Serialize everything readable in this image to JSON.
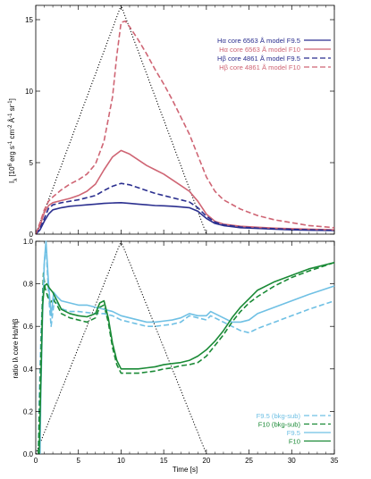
{
  "chart_data": [
    {
      "type": "line",
      "panel": "top",
      "ylabel": "Iλ [10⁶ erg s⁻¹ cm⁻² Å⁻¹ sr⁻¹]",
      "ylabel_parts": {
        "i": "I",
        "sub": "λ",
        "rest": " [10",
        "exp6": "6",
        "erg": " erg s",
        "e1": "-1",
        "cm": " cm",
        "e2": "-2",
        "aa": " Å",
        "e3": "-1",
        "sr": " sr",
        "e4": "-1",
        "end": "]"
      },
      "xlim": [
        0,
        35
      ],
      "ylim": [
        0,
        16
      ],
      "xticks": [
        0,
        5,
        10,
        15,
        20,
        25,
        30,
        35
      ],
      "yticks": [
        0,
        5,
        10,
        15
      ],
      "legend_position": "top-right",
      "series": [
        {
          "name": "Hα core 6563 Å model F9.5",
          "color": "#2b2f8f",
          "dash": "solid",
          "x": [
            0,
            0.5,
            1,
            1.5,
            2,
            3,
            4,
            5,
            6,
            7,
            8,
            9,
            10,
            11,
            12,
            13,
            14,
            15,
            16,
            17,
            18,
            19,
            20,
            21,
            22,
            24,
            26,
            28,
            30,
            32,
            35
          ],
          "y": [
            0,
            0.3,
            0.9,
            1.4,
            1.7,
            1.85,
            1.95,
            2.0,
            2.05,
            2.1,
            2.15,
            2.18,
            2.2,
            2.15,
            2.1,
            2.05,
            2.0,
            1.98,
            1.95,
            1.9,
            1.85,
            1.6,
            1.1,
            0.75,
            0.6,
            0.45,
            0.4,
            0.35,
            0.3,
            0.28,
            0.25
          ]
        },
        {
          "name": "Hα core 6563 Å model F10",
          "color": "#cf6574",
          "dash": "solid",
          "x": [
            0,
            0.5,
            1,
            1.5,
            2,
            3,
            4,
            5,
            6,
            7,
            8,
            9,
            10,
            11,
            12,
            13,
            14,
            15,
            16,
            17,
            18,
            19,
            20,
            21,
            22,
            24,
            26,
            28,
            30,
            32,
            35
          ],
          "y": [
            0,
            0.6,
            1.5,
            2.0,
            2.2,
            2.35,
            2.5,
            2.7,
            3.0,
            3.5,
            4.5,
            5.4,
            5.85,
            5.6,
            5.2,
            4.8,
            4.5,
            4.2,
            3.8,
            3.4,
            3.0,
            2.3,
            1.4,
            0.9,
            0.7,
            0.55,
            0.48,
            0.42,
            0.38,
            0.35,
            0.3
          ]
        },
        {
          "name": "Hβ core 4861 Å model F9.5",
          "color": "#2b2f8f",
          "dash": "dashed",
          "x": [
            0,
            0.5,
            1,
            1.5,
            2,
            3,
            4,
            5,
            6,
            7,
            8,
            9,
            10,
            11,
            12,
            13,
            14,
            15,
            16,
            17,
            18,
            19,
            20,
            21,
            22,
            24,
            26,
            28,
            30,
            32,
            35
          ],
          "y": [
            0,
            0.4,
            1.1,
            1.8,
            2.05,
            2.2,
            2.3,
            2.4,
            2.55,
            2.7,
            3.05,
            3.35,
            3.55,
            3.45,
            3.25,
            3.05,
            2.85,
            2.7,
            2.55,
            2.4,
            2.25,
            1.85,
            1.25,
            0.85,
            0.65,
            0.5,
            0.42,
            0.38,
            0.34,
            0.3,
            0.27
          ]
        },
        {
          "name": "Hβ core 4861 Å model F10",
          "color": "#cf6574",
          "dash": "dashed",
          "x": [
            0,
            0.5,
            1,
            1.5,
            2,
            3,
            4,
            5,
            6,
            7,
            8,
            9,
            9.5,
            10,
            10.5,
            11,
            12,
            13,
            14,
            15,
            16,
            17,
            18,
            19,
            20,
            21,
            22,
            24,
            26,
            28,
            30,
            32,
            35
          ],
          "y": [
            0,
            0.8,
            1.7,
            2.3,
            2.6,
            3.1,
            3.5,
            3.8,
            4.2,
            4.9,
            6.5,
            9.6,
            12.5,
            14.8,
            14.9,
            14.5,
            13.6,
            12.6,
            11.5,
            10.5,
            9.4,
            8.2,
            7.0,
            5.5,
            4.0,
            3.0,
            2.4,
            1.75,
            1.3,
            1.0,
            0.8,
            0.6,
            0.45
          ]
        }
      ],
      "driver_profile": {
        "x": [
          0,
          10,
          20
        ],
        "y": [
          0,
          16,
          0
        ],
        "color": "#000000",
        "dash": "dotted"
      }
    },
    {
      "type": "line",
      "panel": "bottom",
      "xlabel": "Time [s]",
      "ylabel": "ratio Iλ core Hα/Hβ",
      "xlim": [
        0,
        35
      ],
      "ylim": [
        0,
        1.0
      ],
      "xticks": [
        0,
        5,
        10,
        15,
        20,
        25,
        30,
        35
      ],
      "yticks": [
        0.0,
        0.2,
        0.4,
        0.6,
        0.8,
        1.0
      ],
      "legend_position": "bottom-right",
      "series": [
        {
          "name": "F9.5 (bkg-sub)",
          "color": "#6fc0e4",
          "dash": "dashed",
          "x": [
            0.3,
            0.4,
            0.6,
            0.8,
            1.0,
            1.2,
            1.5,
            1.8,
            2.2,
            2.7,
            3.2,
            4,
            5,
            6,
            7,
            8,
            9,
            10,
            11,
            12,
            13,
            14,
            15,
            16,
            17,
            18,
            19,
            20,
            20.5,
            21,
            22,
            23,
            24,
            25,
            26,
            28,
            30,
            32,
            35
          ],
          "y": [
            0,
            0.25,
            0.55,
            0.75,
            0.9,
            0.98,
            0.75,
            0.6,
            0.73,
            0.7,
            0.68,
            0.67,
            0.67,
            0.665,
            0.66,
            0.66,
            0.65,
            0.63,
            0.62,
            0.61,
            0.6,
            0.6,
            0.605,
            0.61,
            0.62,
            0.65,
            0.64,
            0.63,
            0.65,
            0.64,
            0.62,
            0.6,
            0.58,
            0.57,
            0.59,
            0.62,
            0.65,
            0.68,
            0.72
          ]
        },
        {
          "name": "F10 (bkg-sub)",
          "color": "#1a8a36",
          "dash": "dashed",
          "x": [
            0.3,
            0.5,
            0.7,
            0.9,
            1.1,
            1.4,
            1.7,
            2,
            2.5,
            3,
            4,
            5,
            6,
            7,
            7.5,
            8,
            8.5,
            9,
            9.5,
            10,
            11,
            12,
            13,
            14,
            15,
            16,
            17,
            18,
            19,
            20,
            21,
            22,
            23,
            24,
            25,
            26,
            28,
            30,
            32,
            35
          ],
          "y": [
            0,
            0.3,
            0.6,
            0.85,
            0.78,
            0.74,
            0.71,
            0.73,
            0.7,
            0.66,
            0.64,
            0.63,
            0.62,
            0.64,
            0.69,
            0.7,
            0.62,
            0.5,
            0.42,
            0.38,
            0.38,
            0.38,
            0.385,
            0.39,
            0.4,
            0.405,
            0.415,
            0.42,
            0.43,
            0.46,
            0.51,
            0.56,
            0.62,
            0.67,
            0.71,
            0.74,
            0.79,
            0.83,
            0.86,
            0.9
          ]
        },
        {
          "name": "F9.5",
          "color": "#6fc0e4",
          "dash": "solid",
          "x": [
            0.5,
            0.6,
            0.8,
            1.0,
            1.2,
            1.5,
            1.8,
            2.1,
            2.5,
            3,
            4,
            5,
            6,
            7,
            8,
            9,
            10,
            11,
            12,
            13,
            14,
            15,
            16,
            17,
            18,
            19,
            20,
            20.5,
            21,
            22,
            23,
            24,
            25,
            26,
            28,
            30,
            32,
            35
          ],
          "y": [
            0,
            0.3,
            0.65,
            0.9,
            1.0,
            0.8,
            0.65,
            0.76,
            0.74,
            0.72,
            0.71,
            0.7,
            0.7,
            0.69,
            0.68,
            0.67,
            0.65,
            0.64,
            0.63,
            0.62,
            0.62,
            0.625,
            0.63,
            0.64,
            0.66,
            0.65,
            0.65,
            0.67,
            0.66,
            0.64,
            0.62,
            0.62,
            0.63,
            0.66,
            0.69,
            0.72,
            0.75,
            0.79
          ]
        },
        {
          "name": "F10",
          "color": "#1a8a36",
          "dash": "solid",
          "x": [
            0.4,
            0.6,
            0.8,
            1.0,
            1.3,
            1.6,
            2,
            2.5,
            3,
            4,
            5,
            6,
            7,
            7.5,
            8,
            8.5,
            9,
            9.5,
            10,
            11,
            12,
            13,
            14,
            15,
            16,
            17,
            18,
            19,
            20,
            21,
            22,
            23,
            24,
            25,
            26,
            28,
            30,
            32,
            35
          ],
          "y": [
            0,
            0.35,
            0.7,
            0.79,
            0.8,
            0.78,
            0.76,
            0.72,
            0.68,
            0.66,
            0.65,
            0.645,
            0.66,
            0.71,
            0.72,
            0.64,
            0.52,
            0.44,
            0.4,
            0.4,
            0.4,
            0.405,
            0.41,
            0.42,
            0.425,
            0.43,
            0.44,
            0.46,
            0.49,
            0.53,
            0.58,
            0.64,
            0.69,
            0.73,
            0.77,
            0.81,
            0.84,
            0.87,
            0.9
          ]
        }
      ],
      "driver_profile": {
        "x": [
          0,
          10,
          20
        ],
        "y": [
          0,
          1.0,
          0
        ],
        "color": "#000000",
        "dash": "dotted"
      }
    }
  ]
}
